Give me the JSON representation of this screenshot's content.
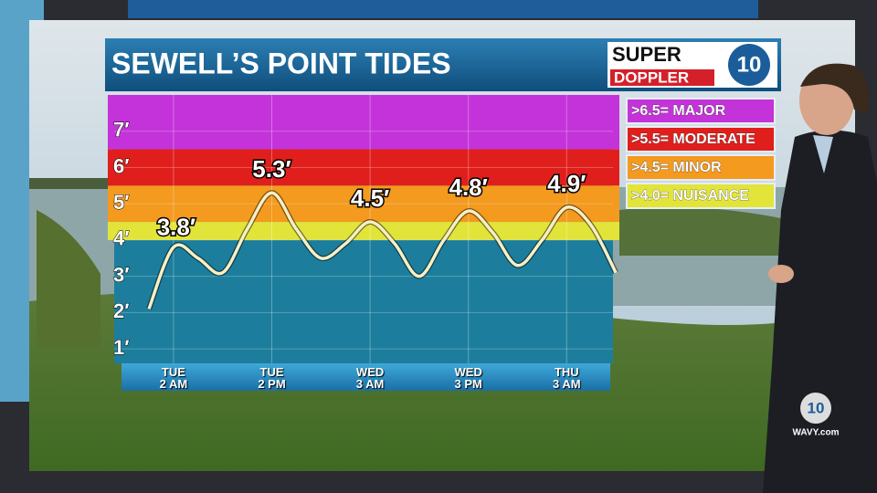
{
  "chart_data": {
    "type": "line",
    "title": "SEWELL’S POINT TIDES",
    "categories": [
      null,
      "TUE\n2 AM",
      null,
      null,
      null,
      "TUE\n2 PM",
      null,
      null,
      null,
      "WED\n3 AM",
      null,
      null,
      null,
      "WED\n3 PM",
      null,
      null,
      null,
      "THU\n3 AM",
      null,
      null
    ],
    "values": [
      2.1,
      3.8,
      3.5,
      3.1,
      4.3,
      5.3,
      4.3,
      3.5,
      3.9,
      4.5,
      3.9,
      3.0,
      4.0,
      4.8,
      4.2,
      3.3,
      4.0,
      4.9,
      4.4,
      3.1
    ],
    "value_labels": [
      null,
      "3.8′",
      null,
      null,
      null,
      "5.3′",
      null,
      null,
      null,
      "4.5′",
      null,
      null,
      null,
      "4.8′",
      null,
      null,
      null,
      "4.9′",
      null,
      null
    ],
    "color": "#f6efc4",
    "base_color": "#1c7e9c",
    "ylim": [
      0.6,
      8
    ],
    "yticks": [
      {
        "value": 1,
        "label": "1′"
      },
      {
        "value": 2,
        "label": "2′"
      },
      {
        "value": 3,
        "label": "3′"
      },
      {
        "value": 4,
        "label": "4′"
      },
      {
        "value": 5,
        "label": "5′"
      },
      {
        "value": 6,
        "label": "6′"
      },
      {
        "value": 7,
        "label": "7′"
      }
    ],
    "grid": true,
    "thresholds": [
      {
        "label": ">6.5= MAJOR",
        "value": 6.5,
        "color": "#c433d9"
      },
      {
        "label": ">5.5= MODERATE",
        "value": 5.5,
        "color": "#e01f1c"
      },
      {
        "label": ">4.5= MINOR",
        "value": 4.5,
        "color": "#f39a1f"
      },
      {
        "label": ">4.0= NUISANCE",
        "value": 4.0,
        "color": "#e2e43a"
      }
    ]
  },
  "branding": {
    "super": "SUPER",
    "doppler": "DOPPLER",
    "channel": "10",
    "watermark": "WAVY.com"
  }
}
